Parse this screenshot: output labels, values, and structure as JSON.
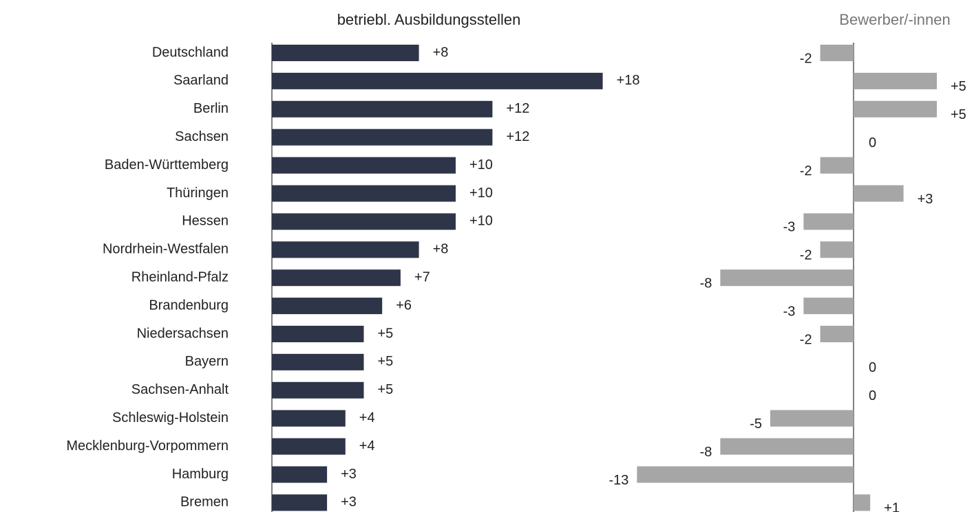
{
  "chart_data": {
    "type": "bar",
    "orientation": "horizontal",
    "categories": [
      "Deutschland",
      "Saarland",
      "Berlin",
      "Sachsen",
      "Baden-Württemberg",
      "Thüringen",
      "Hessen",
      "Nordrhein-Westfalen",
      "Rheinland-Pfalz",
      "Brandenburg",
      "Niedersachsen",
      "Bayern",
      "Sachsen-Anhalt",
      "Schleswig-Holstein",
      "Mecklenburg-Vorpommern",
      "Hamburg",
      "Bremen"
    ],
    "series": [
      {
        "name": "betriebl. Ausbildungsstellen",
        "color": "#2e3549",
        "values": [
          8,
          18,
          12,
          12,
          10,
          10,
          10,
          8,
          7,
          6,
          5,
          5,
          5,
          4,
          4,
          3,
          3
        ],
        "value_labels": [
          "+8",
          "+18",
          "+12",
          "+12",
          "+10",
          "+10",
          "+10",
          "+8",
          "+7",
          "+6",
          "+5",
          "+5",
          "+5",
          "+4",
          "+4",
          "+3",
          "+3"
        ]
      },
      {
        "name": "Bewerber/-innen",
        "color": "#a6a6a6",
        "values": [
          -2,
          5,
          5,
          0,
          -2,
          3,
          -3,
          -2,
          -8,
          -3,
          -2,
          0,
          0,
          -5,
          -8,
          -13,
          1
        ],
        "value_labels": [
          "-2",
          "+5",
          "+5",
          "0",
          "-2",
          "+3",
          "-3",
          "-2",
          "-8",
          "-3",
          "-2",
          "0",
          "0",
          "-5",
          "-8",
          "-13",
          "+1"
        ]
      }
    ]
  }
}
